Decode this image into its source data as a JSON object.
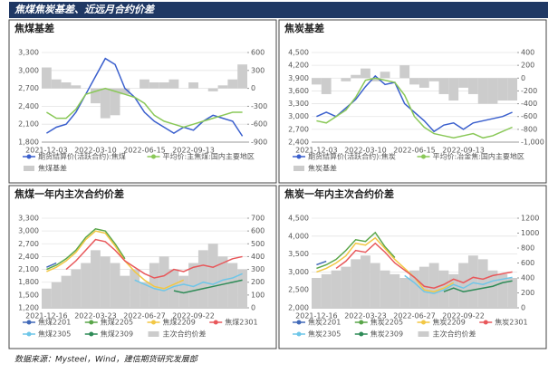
{
  "header": "焦煤焦炭基差、近远月合约价差",
  "source": "数据来源：Mysteel，Wind，建信期货研究发展部",
  "chart_data": [
    {
      "type": "line",
      "title": "焦煤基差",
      "grid": true,
      "categories": [
        "2021-12-03",
        null,
        null,
        null,
        null,
        "2022-03-10",
        null,
        null,
        null,
        null,
        "2022-06-15",
        null,
        null,
        null,
        null,
        "2022-09-13",
        null,
        null,
        null,
        null,
        null
      ],
      "ylim": [
        1800,
        3300
      ],
      "yticks": [
        {
          "value": 1800,
          "label": "1,800"
        },
        {
          "value": 2100,
          "label": "2,100"
        },
        {
          "value": 2400,
          "label": "2,400"
        },
        {
          "value": 2700,
          "label": "2,700"
        },
        {
          "value": 3000,
          "label": "3,000"
        },
        {
          "value": 3300,
          "label": "3,300"
        }
      ],
      "y2lim": [
        -900,
        600
      ],
      "y2ticks": [
        -900,
        -600,
        -300,
        0,
        300,
        600
      ],
      "series": [
        {
          "name": "期货结算价(活跃合约):焦煤",
          "color": "#3a5fcd",
          "values": [
            1950,
            2050,
            2100,
            2300,
            2600,
            2900,
            3200,
            3100,
            2700,
            2550,
            2300,
            2150,
            2050,
            1950,
            2050,
            2000,
            2150,
            2250,
            2200,
            2150,
            1900
          ]
        },
        {
          "name": "平均价:主焦煤:国内主要地区",
          "color": "#8ac858",
          "values": [
            2300,
            2200,
            2200,
            2350,
            2600,
            2650,
            2700,
            2650,
            2600,
            2550,
            2450,
            2250,
            2150,
            2100,
            2050,
            2100,
            2150,
            2200,
            2250,
            2300,
            2300
          ]
        },
        {
          "name": "焦煤基差",
          "color": "#cccccc",
          "axis": "y2",
          "values": [
            350,
            150,
            100,
            50,
            0,
            -250,
            -500,
            -450,
            -100,
            0,
            150,
            100,
            100,
            150,
            0,
            100,
            0,
            -50,
            50,
            150,
            400
          ]
        }
      ]
    },
    {
      "type": "line",
      "title": "焦炭基差",
      "grid": true,
      "categories": [
        "2021-12-03",
        null,
        null,
        null,
        null,
        "2022-03-10",
        null,
        null,
        null,
        null,
        "2022-06-15",
        null,
        null,
        null,
        null,
        "2022-09-13",
        null,
        null,
        null,
        null,
        null
      ],
      "ylim": [
        2400,
        4500
      ],
      "yticks": [
        {
          "value": 2400,
          "label": "2,400"
        },
        {
          "value": 2700,
          "label": "2,700"
        },
        {
          "value": 3000,
          "label": "3,000"
        },
        {
          "value": 3300,
          "label": "3,300"
        },
        {
          "value": 3600,
          "label": "3,600"
        },
        {
          "value": 3900,
          "label": "3,900"
        },
        {
          "value": 4200,
          "label": "4,200"
        },
        {
          "value": 4500,
          "label": "4,500"
        }
      ],
      "y2lim": [
        -1000,
        400
      ],
      "y2ticks": [
        {
          "value": -1000,
          "label": "-1,000"
        },
        -800,
        -600,
        -400,
        -200,
        0,
        200,
        400
      ],
      "series": [
        {
          "name": "期货结算价(活跃合约):焦炭",
          "color": "#3a5fcd",
          "values": [
            3000,
            3100,
            3000,
            3200,
            3400,
            3700,
            3950,
            3750,
            3800,
            3300,
            3100,
            2900,
            2650,
            2800,
            2850,
            2700,
            2850,
            2900,
            2950,
            3000,
            3100
          ]
        },
        {
          "name": "平均价:冶金焦:国内主要地区",
          "color": "#8ac858",
          "values": [
            2900,
            2850,
            3000,
            3150,
            3450,
            3850,
            3900,
            3850,
            3800,
            3500,
            3000,
            2750,
            2600,
            2550,
            2500,
            2550,
            2600,
            2500,
            2550,
            2650,
            2750
          ]
        },
        {
          "name": "焦炭基差",
          "color": "#cccccc",
          "axis": "y2",
          "values": [
            -100,
            -250,
            0,
            -50,
            50,
            150,
            -50,
            100,
            0,
            200,
            -100,
            -150,
            -50,
            -250,
            -350,
            -150,
            -250,
            -400,
            -400,
            -350,
            -350
          ]
        }
      ]
    },
    {
      "type": "line",
      "title": "焦煤一年内主次合约价差",
      "grid": true,
      "categories": [
        "2021-12-16",
        null,
        null,
        null,
        null,
        "2022-03-23",
        null,
        null,
        null,
        null,
        "2022-06-27",
        null,
        null,
        null,
        null,
        "2022-09-22",
        null,
        null,
        null,
        null,
        null
      ],
      "ylim": [
        1200,
        3300
      ],
      "yticks": [
        {
          "value": 1200,
          "label": "1,200"
        },
        {
          "value": 1500,
          "label": "1,500"
        },
        {
          "value": 1800,
          "label": "1,800"
        },
        {
          "value": 2100,
          "label": "2,100"
        },
        {
          "value": 2400,
          "label": "2,400"
        },
        {
          "value": 2700,
          "label": "2,700"
        },
        {
          "value": 3000,
          "label": "3,000"
        },
        {
          "value": 3300,
          "label": "3,300"
        }
      ],
      "y2lim": [
        0,
        700
      ],
      "y2ticks": [
        0,
        100,
        200,
        300,
        400,
        500,
        600,
        700
      ],
      "series": [
        {
          "name": "焦煤2201",
          "color": "#4169b8",
          "values": [
            2150,
            2250,
            null,
            null,
            null,
            null,
            null,
            null,
            null,
            null,
            null,
            null,
            null,
            null,
            null,
            null,
            null,
            null,
            null,
            null,
            null
          ]
        },
        {
          "name": "焦煤2205",
          "color": "#5aa64a",
          "values": [
            2100,
            2200,
            2350,
            2550,
            2850,
            3050,
            3000,
            2700,
            2350,
            null,
            null,
            null,
            null,
            null,
            null,
            null,
            null,
            null,
            null,
            null,
            null
          ]
        },
        {
          "name": "焦煤2209",
          "color": "#f2c744",
          "values": [
            2050,
            2150,
            2300,
            2500,
            2800,
            3000,
            2950,
            2650,
            2300,
            2050,
            1850,
            1700,
            1650,
            1750,
            1850,
            null,
            null,
            null,
            null,
            null,
            null
          ]
        },
        {
          "name": "焦煤2301",
          "color": "#e8575a",
          "values": [
            null,
            null,
            2100,
            2300,
            2550,
            2800,
            2750,
            2550,
            2300,
            2150,
            2000,
            1900,
            1950,
            2100,
            2050,
            2150,
            2200,
            2150,
            2250,
            2350,
            2400
          ]
        },
        {
          "name": "焦煤2305",
          "color": "#6ec6e8",
          "values": [
            null,
            null,
            null,
            null,
            null,
            null,
            null,
            null,
            null,
            1850,
            1750,
            1650,
            1600,
            1700,
            1750,
            1700,
            1800,
            1750,
            1850,
            1900,
            2000
          ]
        },
        {
          "name": "焦煤2309",
          "color": "#2e8b57",
          "values": [
            null,
            null,
            null,
            null,
            null,
            null,
            null,
            null,
            null,
            null,
            null,
            null,
            null,
            1600,
            1550,
            1600,
            1650,
            1700,
            1750,
            1800,
            1850
          ]
        },
        {
          "name": "主次合约价差",
          "color": "#cccccc",
          "axis": "y2",
          "values": [
            150,
            200,
            250,
            300,
            350,
            450,
            400,
            350,
            250,
            300,
            200,
            350,
            400,
            300,
            250,
            350,
            450,
            500,
            400,
            350,
            300
          ]
        }
      ]
    },
    {
      "type": "line",
      "title": "焦炭一年内主次合约价差",
      "grid": true,
      "categories": [
        "2021-12-16",
        null,
        null,
        null,
        null,
        "2022-03-23",
        null,
        null,
        null,
        null,
        "2022-06-27",
        null,
        null,
        null,
        null,
        "2022-09-22",
        null,
        null,
        null,
        null,
        null
      ],
      "ylim": [
        2000,
        4500
      ],
      "yticks": [
        {
          "value": 2000,
          "label": "2,000"
        },
        {
          "value": 2500,
          "label": "2,500"
        },
        {
          "value": 3000,
          "label": "3,000"
        },
        {
          "value": 3500,
          "label": "3,500"
        },
        {
          "value": 4000,
          "label": "4,000"
        },
        {
          "value": 4500,
          "label": "4,500"
        }
      ],
      "y2lim": [
        0,
        1200
      ],
      "y2ticks": [
        0,
        200,
        400,
        600,
        800,
        1000,
        1200
      ],
      "series": [
        {
          "name": "焦炭2201",
          "color": "#4169b8",
          "values": [
            3200,
            3300,
            null,
            null,
            null,
            null,
            null,
            null,
            null,
            null,
            null,
            null,
            null,
            null,
            null,
            null,
            null,
            null,
            null,
            null,
            null
          ]
        },
        {
          "name": "焦炭2205",
          "color": "#5aa64a",
          "values": [
            3100,
            3200,
            3350,
            3600,
            3900,
            3850,
            4100,
            3700,
            3400,
            null,
            null,
            null,
            null,
            null,
            null,
            null,
            null,
            null,
            null,
            null,
            null
          ]
        },
        {
          "name": "焦炭2209",
          "color": "#f2c744",
          "values": [
            3000,
            3100,
            3250,
            3450,
            3800,
            3750,
            3950,
            3650,
            3350,
            3100,
            2850,
            2500,
            2450,
            2550,
            2700,
            null,
            null,
            null,
            null,
            null,
            null
          ]
        },
        {
          "name": "焦炭2301",
          "color": "#e8575a",
          "values": [
            null,
            null,
            3100,
            3300,
            3600,
            3550,
            3800,
            3550,
            3250,
            3050,
            2850,
            2600,
            2550,
            2650,
            2800,
            2700,
            2850,
            2800,
            2900,
            2950,
            3000
          ]
        },
        {
          "name": "焦炭2305",
          "color": "#6ec6e8",
          "values": [
            null,
            null,
            null,
            null,
            null,
            null,
            null,
            null,
            null,
            2900,
            2700,
            2450,
            2400,
            2500,
            2650,
            2550,
            2700,
            2650,
            2750,
            2800,
            2850
          ]
        },
        {
          "name": "焦炭2309",
          "color": "#2e8b57",
          "values": [
            null,
            null,
            null,
            null,
            null,
            null,
            null,
            null,
            null,
            null,
            null,
            null,
            null,
            2450,
            2550,
            2450,
            2500,
            2550,
            2600,
            2700,
            2750
          ]
        },
        {
          "name": "主次合约价差",
          "color": "#cccccc",
          "axis": "y2",
          "values": [
            400,
            450,
            500,
            550,
            650,
            700,
            600,
            500,
            450,
            400,
            500,
            550,
            600,
            500,
            450,
            600,
            700,
            650,
            500,
            450,
            400
          ]
        }
      ]
    }
  ]
}
